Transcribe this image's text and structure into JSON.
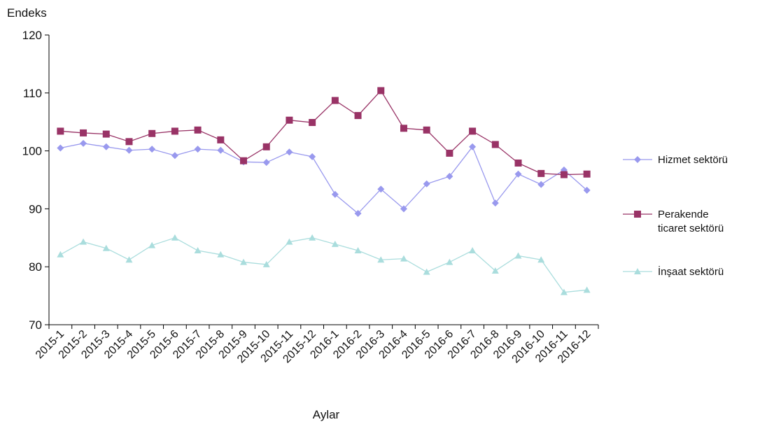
{
  "chart_data": {
    "type": "line",
    "ylabel": "Endeks",
    "xlabel": "Aylar",
    "ylim": [
      70,
      120
    ],
    "yticks": [
      70,
      80,
      90,
      100,
      110,
      120
    ],
    "grid": false,
    "legend_position": "right",
    "categories": [
      "2015-1",
      "2015-2",
      "2015-3",
      "2015-4",
      "2015-5",
      "2015-6",
      "2015-7",
      "2015-8",
      "2015-9",
      "2015-10",
      "2015-11",
      "2015-12",
      "2016-1",
      "2016-2",
      "2016-3",
      "2016-4",
      "2016-5",
      "2016-6",
      "2016-7",
      "2016-8",
      "2016-9",
      "2016-10",
      "2016-11",
      "2016-12"
    ],
    "series": [
      {
        "name": "Hizmet sektörü",
        "legend_lines": [
          "Hizmet sektörü"
        ],
        "color": "#9999ee",
        "marker": "diamond",
        "values": [
          100.5,
          101.3,
          100.7,
          100.1,
          100.3,
          99.2,
          100.3,
          100.1,
          98.1,
          98.0,
          99.8,
          99.0,
          92.5,
          89.2,
          93.4,
          90.0,
          94.3,
          95.6,
          100.7,
          91.0,
          96.0,
          94.2,
          96.7,
          93.2
        ]
      },
      {
        "name": "Perakende ticaret sektörü",
        "legend_lines": [
          "Perakende",
          "ticaret sektörü"
        ],
        "color": "#993366",
        "marker": "square",
        "values": [
          103.4,
          103.1,
          102.9,
          101.6,
          103.0,
          103.4,
          103.6,
          101.9,
          98.3,
          100.7,
          105.3,
          104.9,
          108.7,
          106.1,
          110.4,
          103.9,
          103.6,
          99.6,
          103.4,
          101.1,
          97.9,
          96.1,
          95.9,
          96.0
        ]
      },
      {
        "name": "İnşaat sektörü",
        "legend_lines": [
          "İnşaat sektörü"
        ],
        "color": "#aadddd",
        "marker": "triangle",
        "values": [
          82.1,
          84.3,
          83.2,
          81.2,
          83.7,
          85.0,
          82.8,
          82.1,
          80.8,
          80.4,
          84.3,
          85.0,
          83.9,
          82.8,
          81.2,
          81.4,
          79.1,
          80.8,
          82.8,
          79.3,
          81.9,
          81.2,
          75.6,
          76.0
        ]
      }
    ]
  }
}
